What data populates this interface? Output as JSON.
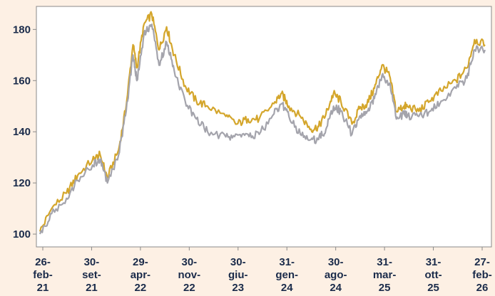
{
  "chart_data": {
    "type": "line",
    "title": "",
    "xlabel": "",
    "ylabel": "",
    "ylim": [
      95,
      189
    ],
    "yticks": [
      100,
      120,
      140,
      160,
      180
    ],
    "grid": false,
    "legend": "none",
    "x_tick_labels": [
      [
        "26-",
        "feb-",
        "21"
      ],
      [
        "30-",
        "set-",
        "21"
      ],
      [
        "29-",
        "apr-",
        "22"
      ],
      [
        "30-",
        "nov-",
        "22"
      ],
      [
        "30-",
        "giu-",
        "23"
      ],
      [
        "31-",
        "gen-",
        "24"
      ],
      [
        "30-",
        "ago-",
        "24"
      ],
      [
        "31-",
        "mar-",
        "25"
      ],
      [
        "31-",
        "ott-",
        "25"
      ],
      [
        "27-",
        "feb-",
        "26"
      ]
    ],
    "x": [
      "2021-02-26",
      "2021-04-15",
      "2021-06-15",
      "2021-07-31",
      "2021-09-30",
      "2021-10-31",
      "2021-11-30",
      "2022-01-15",
      "2022-02-15",
      "2022-03-15",
      "2022-03-31",
      "2022-04-29",
      "2022-05-31",
      "2022-06-30",
      "2022-07-31",
      "2022-08-31",
      "2022-10-15",
      "2022-11-30",
      "2023-01-15",
      "2023-03-31",
      "2023-05-15",
      "2023-06-30",
      "2023-08-15",
      "2023-10-15",
      "2023-11-15",
      "2023-12-15",
      "2024-01-31",
      "2024-03-15",
      "2024-04-15",
      "2024-05-15",
      "2024-06-15",
      "2024-07-15",
      "2024-08-30",
      "2024-09-30",
      "2024-10-31",
      "2024-11-30",
      "2024-12-31",
      "2025-01-31",
      "2025-02-28",
      "2025-03-31",
      "2025-04-15",
      "2025-05-31",
      "2025-07-15",
      "2025-08-31",
      "2025-10-31",
      "2025-12-15",
      "2026-01-15",
      "2026-02-27"
    ],
    "series": [
      {
        "color": "#d4a62c",
        "values": [
          101,
          110,
          116,
          123,
          129,
          131,
          122,
          133,
          150,
          174,
          165,
          182,
          186,
          172,
          181,
          170,
          158,
          152,
          150,
          146,
          143,
          145,
          145,
          151,
          155,
          150,
          146,
          141,
          142,
          147,
          155,
          152,
          143,
          149,
          151,
          157,
          166,
          162,
          148,
          150,
          150,
          148,
          152,
          156,
          160,
          165,
          176,
          174
        ]
      },
      {
        "color": "#a4a4ac",
        "values": [
          100,
          108,
          114,
          121,
          127,
          129,
          120,
          131,
          148,
          170,
          160,
          178,
          182,
          166,
          175,
          164,
          152,
          145,
          140,
          138,
          139,
          139,
          139,
          147,
          151,
          146,
          139,
          137,
          137,
          141,
          150,
          148,
          139,
          146,
          148,
          153,
          162,
          159,
          145,
          147,
          146,
          146,
          148,
          152,
          157,
          161,
          172,
          172
        ]
      }
    ]
  }
}
